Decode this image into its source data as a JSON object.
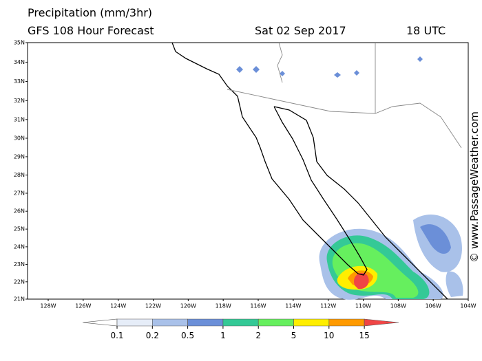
{
  "header": {
    "title": "Precipitation (mm/3hr)",
    "model": "GFS 108 Hour Forecast",
    "date": "Sat 02 Sep 2017",
    "time": "18 UTC"
  },
  "map": {
    "lat_ticks": [
      {
        "value": 35,
        "label": "35N"
      },
      {
        "value": 34,
        "label": "34N"
      },
      {
        "value": 33,
        "label": "33N"
      },
      {
        "value": 32,
        "label": "32N"
      },
      {
        "value": 31,
        "label": "31N"
      },
      {
        "value": 30,
        "label": "30N"
      },
      {
        "value": 29,
        "label": "29N"
      },
      {
        "value": 28,
        "label": "28N"
      },
      {
        "value": 27,
        "label": "27N"
      },
      {
        "value": 26,
        "label": "26N"
      },
      {
        "value": 25,
        "label": "25N"
      },
      {
        "value": 24,
        "label": "24N"
      },
      {
        "value": 23,
        "label": "23N"
      },
      {
        "value": 22,
        "label": "22N"
      },
      {
        "value": 21,
        "label": "21N"
      }
    ],
    "lon_ticks": [
      {
        "value": -128,
        "label": "128W"
      },
      {
        "value": -126,
        "label": "126W"
      },
      {
        "value": -124,
        "label": "124W"
      },
      {
        "value": -122,
        "label": "122W"
      },
      {
        "value": -120,
        "label": "120W"
      },
      {
        "value": -118,
        "label": "118W"
      },
      {
        "value": -116,
        "label": "116W"
      },
      {
        "value": -114,
        "label": "114W"
      },
      {
        "value": -112,
        "label": "112W"
      },
      {
        "value": -110,
        "label": "110W"
      },
      {
        "value": -108,
        "label": "108W"
      },
      {
        "value": -106,
        "label": "106W"
      },
      {
        "value": -104,
        "label": "104W"
      }
    ]
  },
  "colorbar": {
    "levels": [
      0.1,
      0.2,
      0.5,
      1,
      2,
      5,
      10,
      15
    ],
    "colors": [
      "#ffffff",
      "#e6edf8",
      "#a9c1e9",
      "#6b8fd8",
      "#34c996",
      "#66ef5e",
      "#ffee00",
      "#ff9a00",
      "#f04545"
    ]
  },
  "watermark": "© www.PassageWeather.com"
}
